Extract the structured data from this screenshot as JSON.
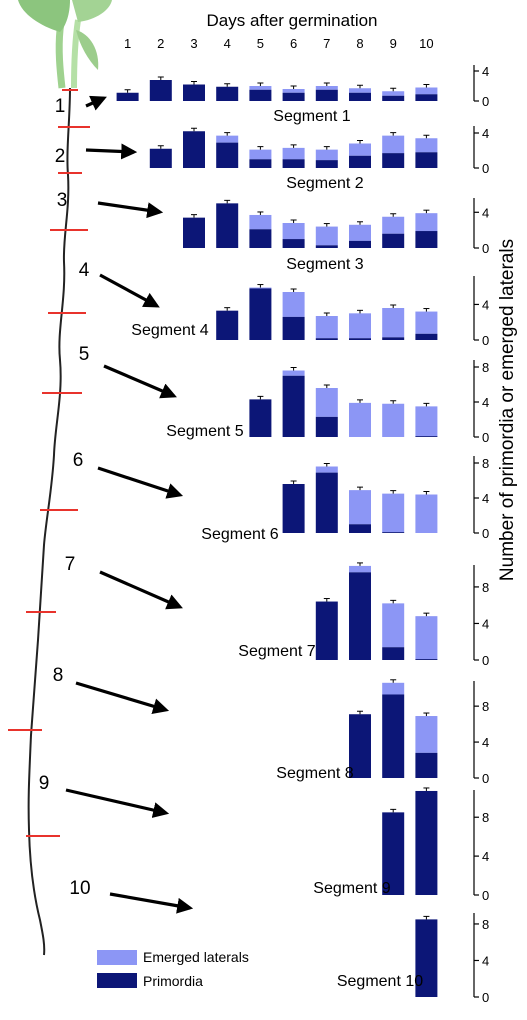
{
  "chart_data": {
    "type": "bar",
    "title": "Days after germination",
    "xlabel": "Days after germination",
    "ylabel": "Number of primordia or emerged laterals",
    "days": [
      "1",
      "2",
      "3",
      "4",
      "5",
      "6",
      "7",
      "8",
      "9",
      "10"
    ],
    "legend": [
      {
        "name": "Emerged laterals",
        "color": "#8c96f5"
      },
      {
        "name": "Primordia",
        "color": "#0c1677"
      }
    ],
    "legend_position": "bottom-left",
    "colors": {
      "emerged": "#8c96f5",
      "primordia": "#0c1677",
      "error_bar": "#000000",
      "segment_mark": "#e8332c",
      "root": "#222222",
      "shoot": "#8cc57e"
    },
    "panels": [
      {
        "segment": "Segment 1",
        "number": "1",
        "ylim": [
          0,
          4.8
        ],
        "yticks": [
          "0",
          "4"
        ],
        "primordia": [
          1.1,
          2.8,
          2.2,
          1.9,
          1.5,
          1.1,
          1.5,
          1.1,
          0.7,
          0.9
        ],
        "total": [
          1.1,
          2.8,
          2.2,
          1.9,
          2.0,
          1.6,
          2.0,
          1.7,
          1.3,
          1.8
        ]
      },
      {
        "segment": "Segment 2",
        "number": "2",
        "ylim": [
          0,
          4.8
        ],
        "yticks": [
          "0",
          "4"
        ],
        "primordia": [
          null,
          2.2,
          4.2,
          2.9,
          1.0,
          1.0,
          0.9,
          1.4,
          1.7,
          1.8
        ],
        "total": [
          null,
          2.2,
          4.2,
          3.7,
          2.1,
          2.3,
          2.1,
          2.8,
          3.7,
          3.4
        ]
      },
      {
        "segment": "Segment 3",
        "number": "3",
        "ylim": [
          0,
          5.6
        ],
        "yticks": [
          "0",
          "4"
        ],
        "primordia": [
          null,
          null,
          3.4,
          5.0,
          2.1,
          1.0,
          0.3,
          0.8,
          1.6,
          1.9
        ],
        "total": [
          null,
          null,
          3.4,
          5.0,
          3.7,
          2.8,
          2.4,
          2.6,
          3.5,
          3.9
        ]
      },
      {
        "segment": "Segment 4",
        "number": "4",
        "ylim": [
          0,
          7.2
        ],
        "yticks": [
          "0",
          "4"
        ],
        "primordia": [
          null,
          null,
          null,
          3.3,
          5.8,
          2.6,
          0.2,
          0.2,
          0.3,
          0.7
        ],
        "total": [
          null,
          null,
          null,
          3.3,
          5.9,
          5.4,
          2.7,
          3.0,
          3.6,
          3.2
        ]
      },
      {
        "segment": "Segment 5",
        "number": "5",
        "ylim": [
          0,
          8.8
        ],
        "yticks": [
          "0",
          "4",
          "8"
        ],
        "primordia": [
          null,
          null,
          null,
          null,
          4.3,
          7.0,
          2.3,
          0.0,
          0.0,
          0.1
        ],
        "total": [
          null,
          null,
          null,
          null,
          4.3,
          7.6,
          5.6,
          3.9,
          3.8,
          3.5
        ]
      },
      {
        "segment": "Segment 6",
        "number": "6",
        "ylim": [
          0,
          8.8
        ],
        "yticks": [
          "0",
          "4",
          "8"
        ],
        "primordia": [
          null,
          null,
          null,
          null,
          null,
          5.6,
          6.9,
          1.0,
          0.1,
          0.0
        ],
        "total": [
          null,
          null,
          null,
          null,
          null,
          5.6,
          7.6,
          4.9,
          4.5,
          4.4
        ]
      },
      {
        "segment": "Segment 7",
        "number": "7",
        "ylim": [
          0,
          10.4
        ],
        "yticks": [
          "0",
          "4",
          "8"
        ],
        "primordia": [
          null,
          null,
          null,
          null,
          null,
          null,
          6.4,
          9.6,
          1.4,
          0.1
        ],
        "total": [
          null,
          null,
          null,
          null,
          null,
          null,
          6.4,
          10.3,
          6.2,
          4.8
        ]
      },
      {
        "segment": "Segment 8",
        "number": "8",
        "ylim": [
          0,
          10.8
        ],
        "yticks": [
          "0",
          "4",
          "8"
        ],
        "primordia": [
          null,
          null,
          null,
          null,
          null,
          null,
          null,
          7.1,
          9.3,
          2.8
        ],
        "total": [
          null,
          null,
          null,
          null,
          null,
          null,
          null,
          7.1,
          10.6,
          6.9
        ]
      },
      {
        "segment": "Segment 9",
        "number": "9",
        "ylim": [
          0,
          10.8
        ],
        "yticks": [
          "0",
          "4",
          "8"
        ],
        "primordia": [
          null,
          null,
          null,
          null,
          null,
          null,
          null,
          null,
          8.5,
          10.7
        ],
        "total": [
          null,
          null,
          null,
          null,
          null,
          null,
          null,
          null,
          8.5,
          10.7
        ]
      },
      {
        "segment": "Segment 10",
        "number": "10",
        "ylim": [
          0,
          9.2
        ],
        "yticks": [
          "0",
          "4",
          "8"
        ],
        "primordia": [
          null,
          null,
          null,
          null,
          null,
          null,
          null,
          null,
          null,
          8.5
        ],
        "total": [
          null,
          null,
          null,
          null,
          null,
          null,
          null,
          null,
          null,
          8.5
        ]
      }
    ]
  }
}
